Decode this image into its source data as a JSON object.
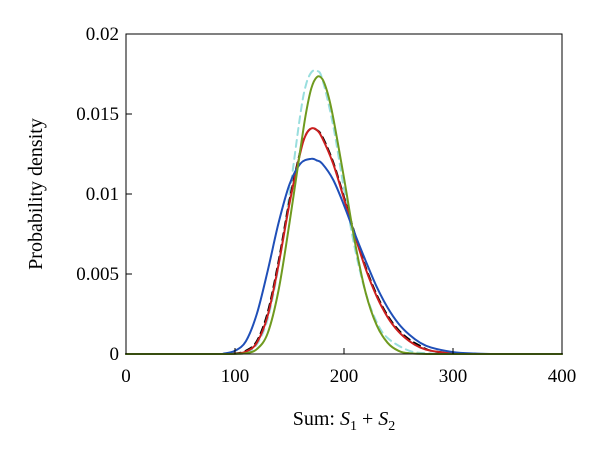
{
  "chart_data": {
    "type": "line",
    "xlabel_prefix": "Sum: ",
    "xlabel_terms": [
      {
        "symbol": "S",
        "subscript": "1"
      },
      {
        "symbol": "S",
        "subscript": "2"
      }
    ],
    "xlabel_operator": "+",
    "ylabel": "Probability density",
    "xlim": [
      0,
      400
    ],
    "ylim": [
      0,
      0.02
    ],
    "xticks": [
      0,
      100,
      200,
      300,
      400
    ],
    "xtick_labels": [
      "0",
      "100",
      "200",
      "300",
      "400"
    ],
    "yticks": [
      0,
      0.005,
      0.01,
      0.015,
      0.02
    ],
    "ytick_labels": [
      "0",
      "0.005",
      "0.01",
      "0.015",
      "0.02"
    ],
    "grid": false,
    "series": [
      {
        "color": "#99dede",
        "dash": "dashed",
        "x": [
          0,
          80,
          100,
          110,
          120,
          130,
          140,
          150,
          160,
          165,
          170,
          175,
          180,
          190,
          200,
          210,
          220,
          230,
          240,
          260,
          280,
          300,
          320,
          400
        ],
        "y": [
          0,
          0,
          2e-05,
          0.0001,
          0.0006,
          0.0022,
          0.0055,
          0.01,
          0.015,
          0.0168,
          0.0176,
          0.0177,
          0.0172,
          0.0143,
          0.0103,
          0.0066,
          0.0038,
          0.002,
          0.001,
          0.0002,
          3e-05,
          0,
          0,
          0
        ]
      },
      {
        "color": "#000000",
        "dash": "dashed",
        "x": [
          0,
          80,
          100,
          110,
          120,
          130,
          140,
          150,
          160,
          165,
          170,
          175,
          180,
          190,
          200,
          210,
          220,
          230,
          240,
          250,
          260,
          270,
          280,
          300,
          320,
          400
        ],
        "y": [
          0,
          0,
          3e-05,
          0.0002,
          0.0008,
          0.0026,
          0.0058,
          0.0096,
          0.0127,
          0.0137,
          0.0141,
          0.014,
          0.0136,
          0.012,
          0.0098,
          0.0075,
          0.0054,
          0.0037,
          0.0024,
          0.0015,
          0.0009,
          0.0005,
          0.0002,
          5e-05,
          0,
          0
        ]
      },
      {
        "color": "#cc1f1f",
        "dash": "solid",
        "x": [
          0,
          80,
          100,
          110,
          120,
          130,
          140,
          150,
          160,
          165,
          170,
          175,
          180,
          190,
          200,
          210,
          220,
          230,
          240,
          250,
          260,
          270,
          280,
          300,
          320,
          400
        ],
        "y": [
          0,
          0,
          2e-05,
          0.00015,
          0.0007,
          0.0024,
          0.0056,
          0.0094,
          0.0126,
          0.0137,
          0.0141,
          0.014,
          0.0135,
          0.0119,
          0.0097,
          0.0074,
          0.0053,
          0.0036,
          0.0023,
          0.0014,
          0.0008,
          0.0004,
          0.0002,
          4e-05,
          0,
          0
        ]
      },
      {
        "color": "#1f4fb8",
        "dash": "solid",
        "x": [
          0,
          80,
          90,
          100,
          110,
          120,
          130,
          140,
          150,
          160,
          170,
          175,
          180,
          190,
          200,
          210,
          220,
          230,
          240,
          250,
          260,
          270,
          280,
          300,
          320,
          340,
          400
        ],
        "y": [
          0,
          0,
          3e-05,
          0.0002,
          0.0008,
          0.0025,
          0.0052,
          0.0082,
          0.0106,
          0.0119,
          0.0122,
          0.0121,
          0.0119,
          0.0109,
          0.0093,
          0.0075,
          0.0058,
          0.0042,
          0.0029,
          0.0019,
          0.0012,
          0.0007,
          0.0004,
          0.00012,
          3e-05,
          0,
          0
        ]
      },
      {
        "color": "#6f9a1f",
        "dash": "solid",
        "x": [
          0,
          80,
          100,
          110,
          120,
          130,
          140,
          150,
          160,
          165,
          170,
          175,
          180,
          185,
          190,
          200,
          210,
          220,
          230,
          240,
          250,
          260,
          280,
          300,
          400
        ],
        "y": [
          0,
          0,
          1e-05,
          5e-05,
          0.0003,
          0.0013,
          0.004,
          0.0082,
          0.0128,
          0.015,
          0.0166,
          0.0173,
          0.0172,
          0.0163,
          0.0148,
          0.011,
          0.007,
          0.0038,
          0.0018,
          0.0007,
          0.0002,
          5e-05,
          0,
          0,
          0
        ]
      }
    ]
  }
}
